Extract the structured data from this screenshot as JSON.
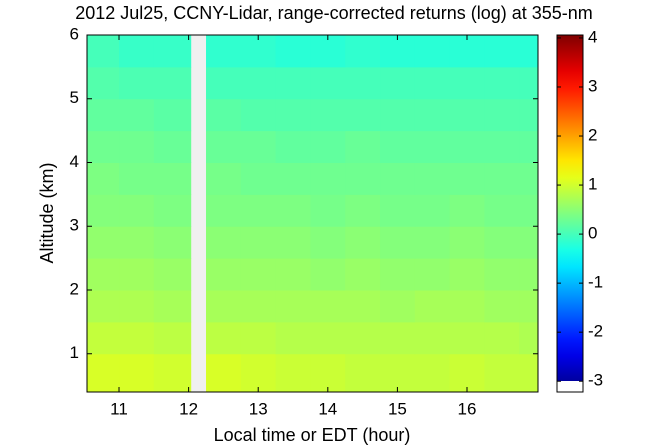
{
  "chart_data": {
    "type": "heatmap",
    "title": "2012 Jul25, CCNY-Lidar, range-corrected returns (log) at 355-nm",
    "xlabel": "Local time or EDT (hour)",
    "ylabel": "Altitude (km)",
    "xbins": [
      10.54,
      11.0,
      11.5,
      12.03,
      12.25,
      12.75,
      13.25,
      13.75,
      14.25,
      14.75,
      15.25,
      15.75,
      16.25,
      16.75,
      17.02
    ],
    "ybins": [
      0.4,
      1.0,
      1.5,
      2.0,
      2.5,
      3.0,
      3.5,
      4.0,
      4.5,
      5.0,
      5.5,
      6.0
    ],
    "values": [
      [
        1.05,
        1.05,
        1.0,
        null,
        1.05,
        1.0,
        0.95,
        0.95,
        0.9,
        0.9,
        0.9,
        0.95,
        0.9,
        0.9
      ],
      [
        0.9,
        0.9,
        0.85,
        null,
        0.85,
        0.85,
        0.8,
        0.8,
        0.8,
        0.8,
        0.8,
        0.8,
        0.8,
        0.75
      ],
      [
        0.75,
        0.75,
        0.7,
        null,
        0.7,
        0.7,
        0.7,
        0.7,
        0.7,
        0.65,
        0.7,
        0.7,
        0.65,
        0.65
      ],
      [
        0.65,
        0.65,
        0.6,
        null,
        0.6,
        0.6,
        0.6,
        0.55,
        0.6,
        0.55,
        0.55,
        0.6,
        0.55,
        0.55
      ],
      [
        0.55,
        0.55,
        0.5,
        null,
        0.5,
        0.5,
        0.5,
        0.45,
        0.5,
        0.45,
        0.45,
        0.5,
        0.45,
        0.45
      ],
      [
        0.45,
        0.45,
        0.4,
        null,
        0.4,
        0.4,
        0.4,
        0.35,
        0.4,
        0.35,
        0.35,
        0.4,
        0.35,
        0.35
      ],
      [
        0.4,
        0.35,
        0.35,
        null,
        0.35,
        0.3,
        0.3,
        0.3,
        0.3,
        0.3,
        0.3,
        0.3,
        0.3,
        0.3
      ],
      [
        0.3,
        0.3,
        0.25,
        null,
        0.25,
        0.25,
        0.2,
        0.2,
        0.25,
        0.2,
        0.2,
        0.2,
        0.2,
        0.2
      ],
      [
        0.2,
        0.2,
        0.15,
        null,
        0.15,
        0.1,
        0.1,
        0.1,
        0.1,
        0.1,
        0.1,
        0.1,
        0.1,
        0.1
      ],
      [
        0.1,
        0.05,
        0.05,
        null,
        0.0,
        0.0,
        0.0,
        0.0,
        0.0,
        0.0,
        0.0,
        0.0,
        0.0,
        0.0
      ],
      [
        0.0,
        -0.1,
        -0.1,
        null,
        -0.15,
        -0.15,
        -0.2,
        -0.2,
        -0.15,
        -0.2,
        -0.2,
        -0.2,
        -0.2,
        -0.2
      ]
    ],
    "xlim": [
      10.54,
      17.02
    ],
    "ylim": [
      0.4,
      6
    ],
    "xticks": [
      11,
      12,
      13,
      14,
      15,
      16
    ],
    "yticks": [
      1,
      2,
      3,
      4,
      5,
      6
    ],
    "clim": [
      -3.22,
      4.06
    ],
    "cticks": [
      -3,
      -2,
      -1,
      0,
      1,
      2,
      3,
      4
    ],
    "colormap": "jet"
  }
}
